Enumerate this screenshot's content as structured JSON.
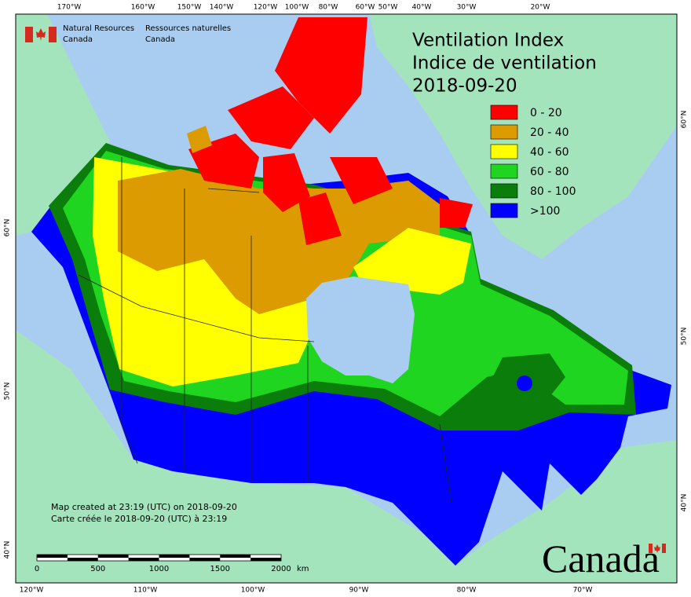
{
  "header": {
    "agency_en": [
      "Natural Resources",
      "Canada"
    ],
    "agency_fr": [
      "Ressources naturelles",
      "Canada"
    ]
  },
  "title": [
    "Ventilation Index",
    "Indice de ventilation",
    "2018-09-20"
  ],
  "legend": [
    {
      "label": "0 - 20",
      "color": "#ff0000"
    },
    {
      "label": "20 - 40",
      "color": "#dc9b00"
    },
    {
      "label": "40 - 60",
      "color": "#ffff00"
    },
    {
      "label": "60 - 80",
      "color": "#1fd51f"
    },
    {
      "label": "80 - 100",
      "color": "#0a7d0a"
    },
    {
      "label": ">100",
      "color": "#0000ff"
    }
  ],
  "notes": [
    "Map created at 23:19 (UTC) on 2018-09-20",
    "Carte créée le 2018-09-20 (UTC) à 23:19"
  ],
  "scale_bar": {
    "labels": [
      "0",
      "500",
      "1000",
      "1500",
      "2000"
    ],
    "unit": "km"
  },
  "graticule": {
    "top": [
      "170°W",
      "160°W",
      "150°W",
      "140°W",
      "120°W",
      "100°W",
      "80°W",
      "60°W",
      "50°W",
      "40°W",
      "30°W",
      "20°W"
    ],
    "bottom": [
      "120°W",
      "110°W",
      "100°W",
      "90°W",
      "80°W",
      "70°W"
    ],
    "left": [
      "60°N",
      "50°N",
      "40°N"
    ],
    "right": [
      "60°N",
      "50°N",
      "40°N"
    ]
  },
  "wordmark": "Canada"
}
